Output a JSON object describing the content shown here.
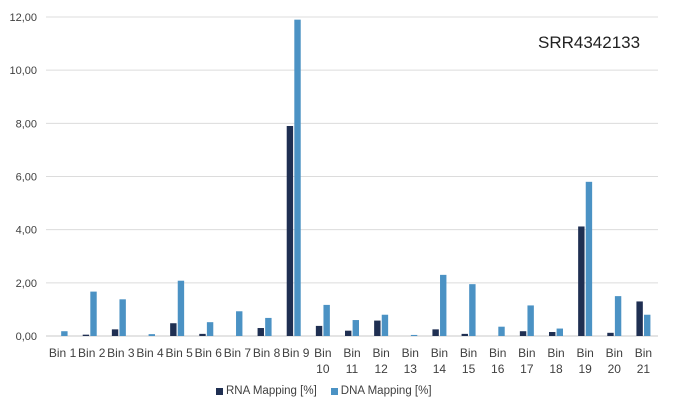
{
  "chart_data": {
    "type": "bar",
    "title": "SRR4342133",
    "categories": [
      [
        "Bin",
        "1"
      ],
      [
        "Bin",
        "2"
      ],
      [
        "Bin",
        "3"
      ],
      [
        "Bin",
        "4"
      ],
      [
        "Bin",
        "5"
      ],
      [
        "Bin",
        "6"
      ],
      [
        "Bin",
        "7"
      ],
      [
        "Bin",
        "8"
      ],
      [
        "Bin",
        "9"
      ],
      [
        "Bin",
        "10"
      ],
      [
        "Bin",
        "11"
      ],
      [
        "Bin",
        "12"
      ],
      [
        "Bin",
        "13"
      ],
      [
        "Bin",
        "14"
      ],
      [
        "Bin",
        "15"
      ],
      [
        "Bin",
        "16"
      ],
      [
        "Bin",
        "17"
      ],
      [
        "Bin",
        "18"
      ],
      [
        "Bin",
        "19"
      ],
      [
        "Bin",
        "20"
      ],
      [
        "Bin",
        "21"
      ]
    ],
    "category_labels_wrapped_from_index": 9,
    "series": [
      {
        "name": "RNA Mapping [%]",
        "color": "#1f2f52",
        "values": [
          0.0,
          0.05,
          0.25,
          0.0,
          0.48,
          0.08,
          0.0,
          0.3,
          7.9,
          0.38,
          0.2,
          0.58,
          0.0,
          0.25,
          0.08,
          0.0,
          0.18,
          0.15,
          4.12,
          0.12,
          1.3
        ]
      },
      {
        "name": "DNA Mapping [%]",
        "color": "#4b92c4",
        "values": [
          0.18,
          1.67,
          1.38,
          0.07,
          2.08,
          0.52,
          0.93,
          0.68,
          11.9,
          1.17,
          0.6,
          0.8,
          0.04,
          2.3,
          1.95,
          0.35,
          1.15,
          0.28,
          5.8,
          1.5,
          0.8
        ]
      }
    ],
    "y_tick_labels": [
      "0,00",
      "2,00",
      "4,00",
      "6,00",
      "8,00",
      "10,00",
      "12,00"
    ],
    "ylim": [
      0,
      12
    ],
    "grid": true,
    "legend_position": "bottom"
  }
}
